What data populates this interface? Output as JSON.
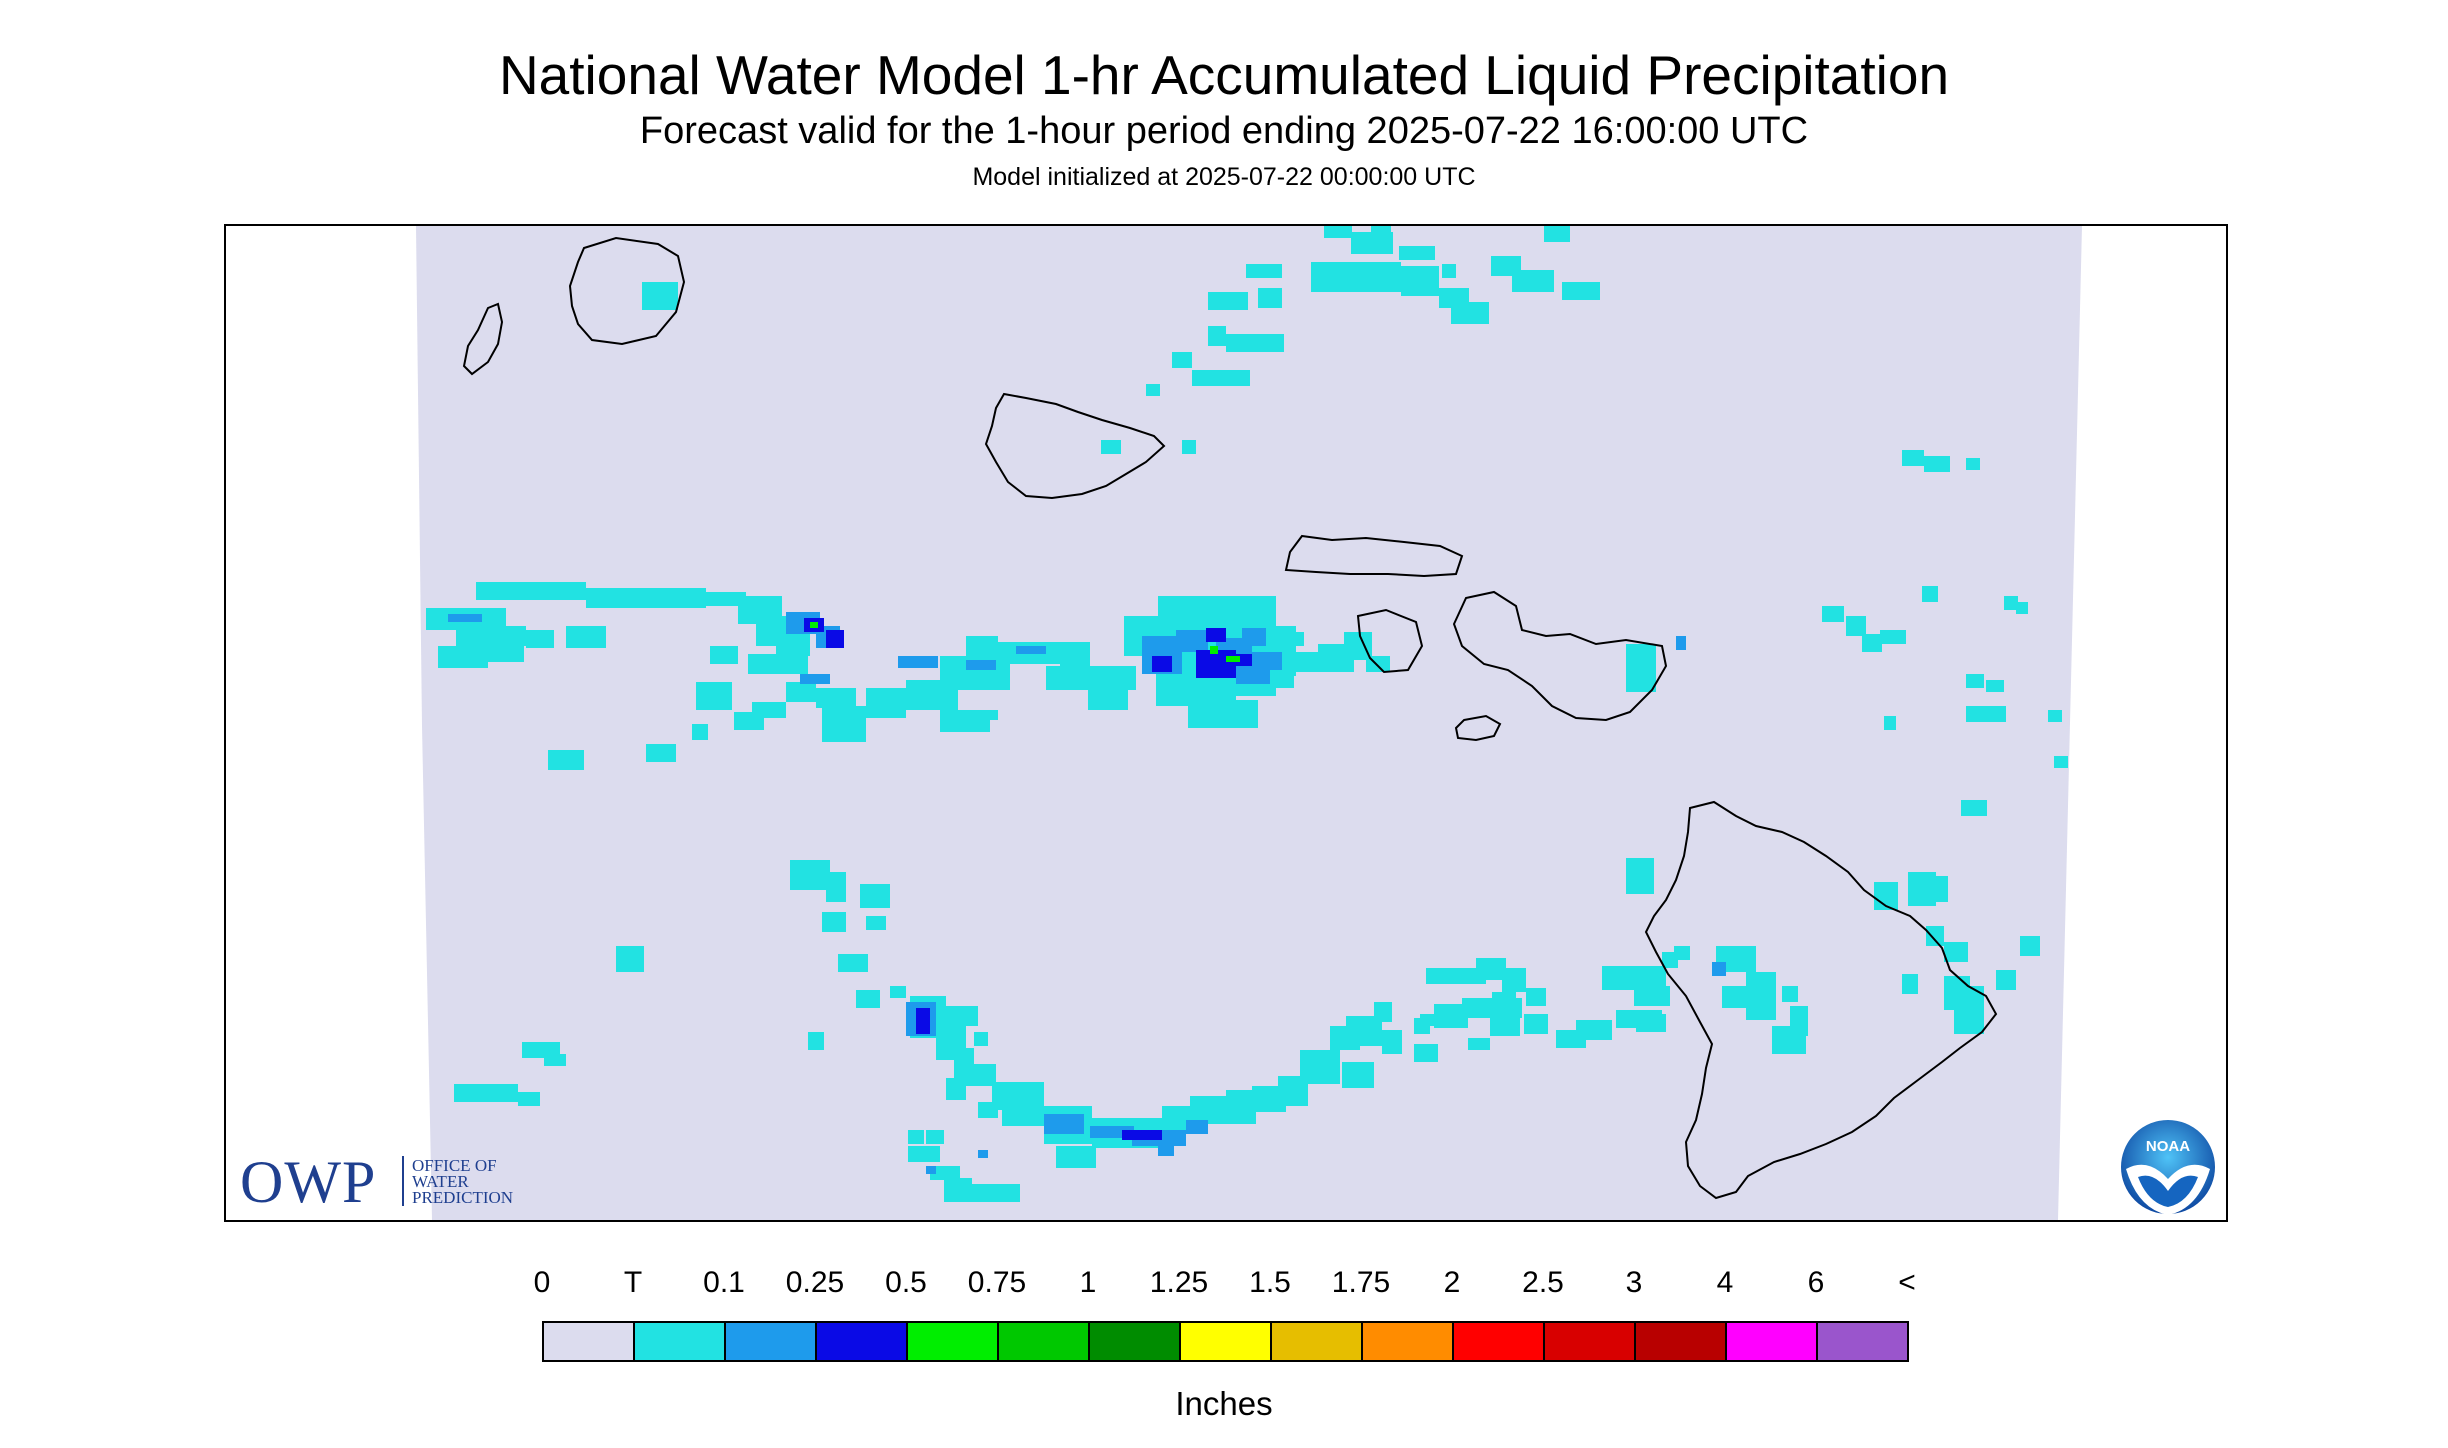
{
  "header": {
    "title": "National Water Model 1-hr Accumulated Liquid Precipitation",
    "subtitle": "Forecast valid for the 1-hour period ending 2025-07-22 16:00:00 UTC",
    "model_init": "Model initialized at 2025-07-22 00:00:00 UTC"
  },
  "logos": {
    "owp_letters": "OWP",
    "owp_line1": "OFFICE OF",
    "owp_line2": "WATER",
    "owp_line3": "PREDICTION",
    "noaa_text": "NOAA"
  },
  "legend": {
    "labels": [
      "0",
      "T",
      "0.1",
      "0.25",
      "0.5",
      "0.75",
      "1",
      "1.25",
      "1.5",
      "1.75",
      "2",
      "2.5",
      "3",
      "4",
      "6",
      "<"
    ],
    "colors": [
      "#dcdcee",
      "#22e2e2",
      "#1e9bec",
      "#0a0ae6",
      "#00ee00",
      "#00c800",
      "#008c00",
      "#ffff00",
      "#e6be00",
      "#ff8c00",
      "#ff0000",
      "#d80000",
      "#b80000",
      "#ff00ff",
      "#9a55cc"
    ],
    "units": "Inches"
  },
  "map": {
    "domain_color": "#dcdcee",
    "coastline_color": "#000000",
    "islands": [
      "Kauai",
      "Niihau",
      "Oahu",
      "Molokai",
      "Lanai",
      "Maui",
      "Kahoolawe",
      "Hawaii"
    ]
  }
}
